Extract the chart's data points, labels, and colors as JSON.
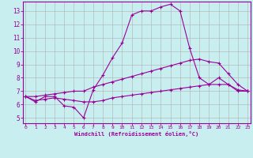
{
  "xlabel": "Windchill (Refroidissement éolien,°C)",
  "bg_color": "#c8eef0",
  "line_color": "#990099",
  "grid_color": "#b0b0b0",
  "x_ticks": [
    0,
    1,
    2,
    3,
    4,
    5,
    6,
    7,
    8,
    9,
    10,
    11,
    12,
    13,
    14,
    15,
    16,
    17,
    18,
    19,
    20,
    21,
    22,
    23
  ],
  "y_ticks": [
    5,
    6,
    7,
    8,
    9,
    10,
    11,
    12,
    13
  ],
  "ylim": [
    4.6,
    13.7
  ],
  "xlim": [
    -0.3,
    23.3
  ],
  "line1_x": [
    0,
    1,
    2,
    3,
    4,
    5,
    6,
    7,
    8,
    9,
    10,
    11,
    12,
    13,
    14,
    15,
    16,
    17,
    18,
    19,
    20,
    21,
    22,
    23
  ],
  "line1_y": [
    6.6,
    6.2,
    6.6,
    6.6,
    5.9,
    5.8,
    5.0,
    7.1,
    8.2,
    9.5,
    10.6,
    12.7,
    13.0,
    13.0,
    13.3,
    13.5,
    13.0,
    10.2,
    8.0,
    7.5,
    8.0,
    7.5,
    7.0,
    7.0
  ],
  "line2_x": [
    0,
    1,
    2,
    3,
    4,
    5,
    6,
    7,
    8,
    9,
    10,
    11,
    12,
    13,
    14,
    15,
    16,
    17,
    18,
    19,
    20,
    21,
    22,
    23
  ],
  "line2_y": [
    6.6,
    6.6,
    6.7,
    6.8,
    6.9,
    7.0,
    7.0,
    7.3,
    7.5,
    7.7,
    7.9,
    8.1,
    8.3,
    8.5,
    8.7,
    8.9,
    9.1,
    9.3,
    9.4,
    9.2,
    9.1,
    8.3,
    7.5,
    7.0
  ],
  "line3_x": [
    0,
    1,
    2,
    3,
    4,
    5,
    6,
    7,
    8,
    9,
    10,
    11,
    12,
    13,
    14,
    15,
    16,
    17,
    18,
    19,
    20,
    21,
    22,
    23
  ],
  "line3_y": [
    6.6,
    6.3,
    6.4,
    6.5,
    6.4,
    6.3,
    6.2,
    6.2,
    6.3,
    6.5,
    6.6,
    6.7,
    6.8,
    6.9,
    7.0,
    7.1,
    7.2,
    7.3,
    7.4,
    7.5,
    7.5,
    7.5,
    7.1,
    7.0
  ]
}
